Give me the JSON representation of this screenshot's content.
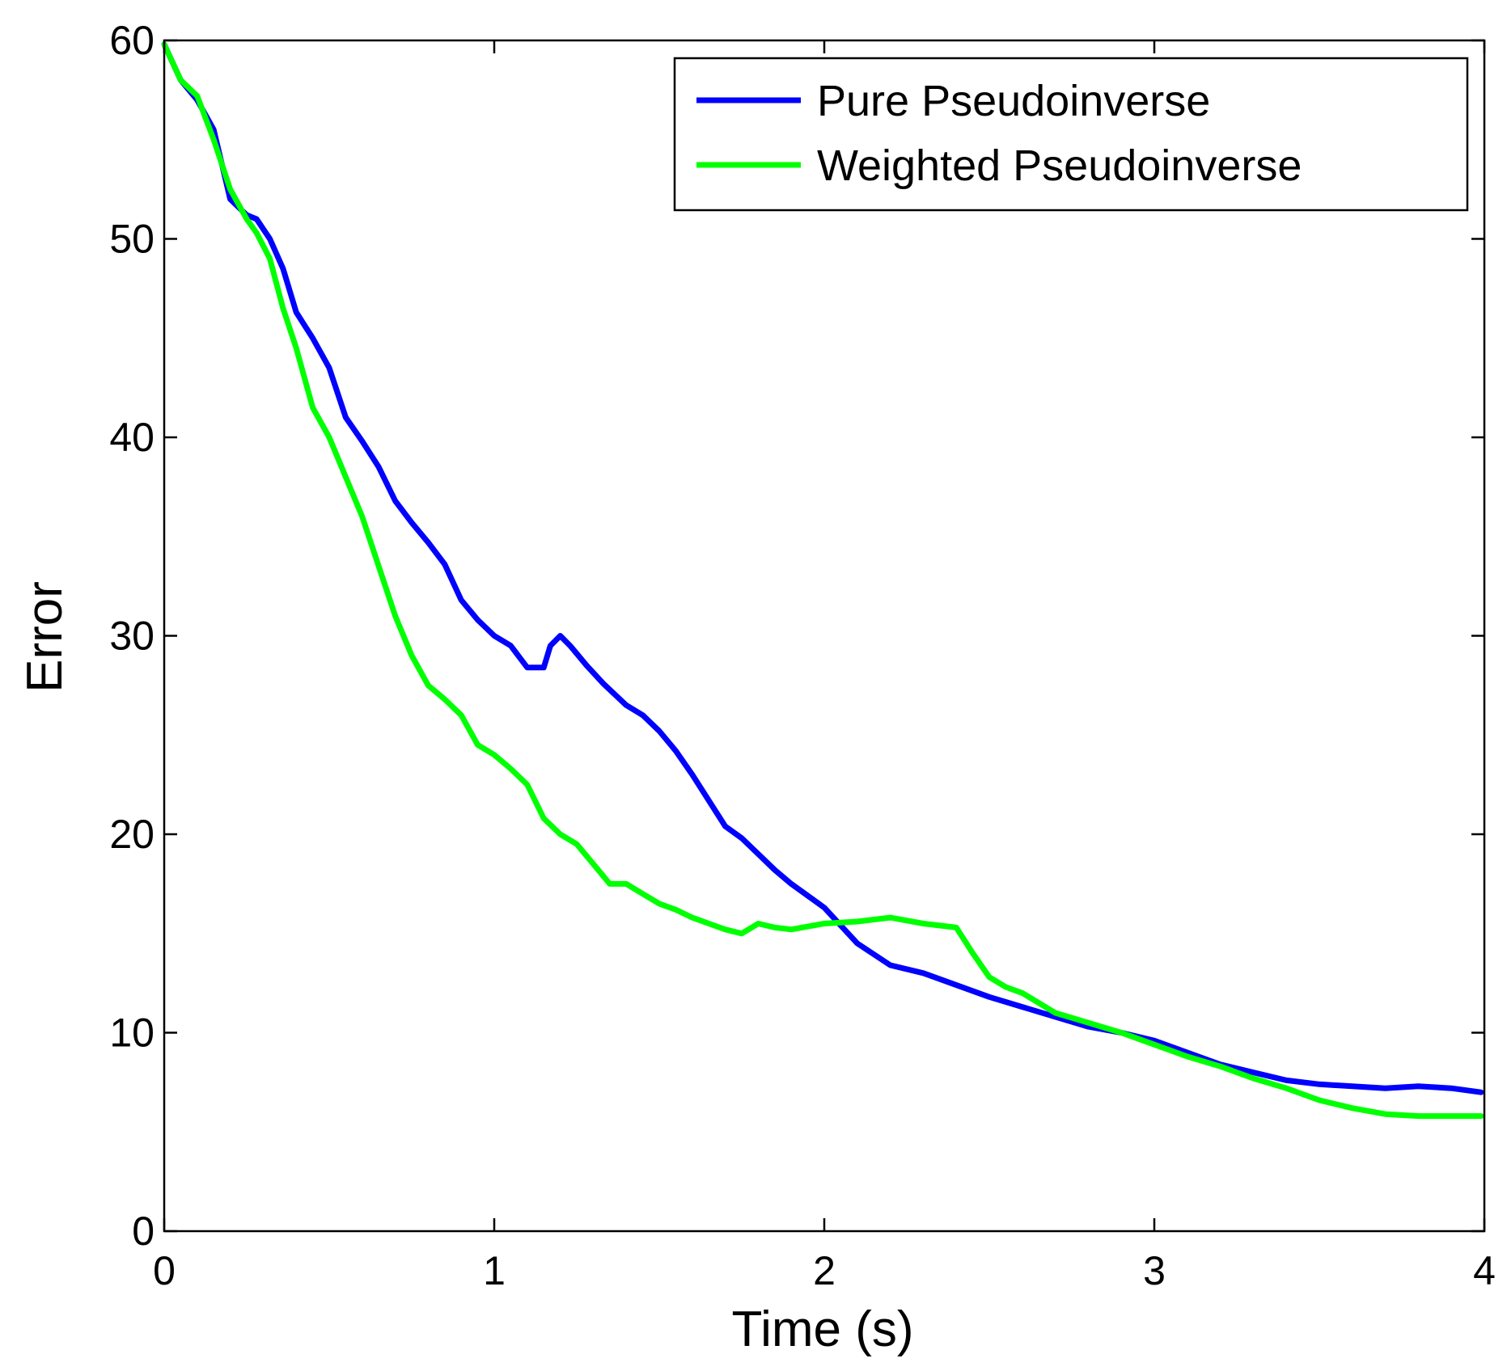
{
  "chart_data": {
    "type": "line",
    "title": "",
    "xlabel": "Time (s)",
    "ylabel": "Error",
    "xlim": [
      0,
      4
    ],
    "ylim": [
      0,
      60
    ],
    "xticks": [
      "0",
      "1",
      "2",
      "3",
      "4"
    ],
    "yticks": [
      "0",
      "10",
      "20",
      "30",
      "40",
      "50",
      "60"
    ],
    "grid": false,
    "legend_position": "top-right",
    "series": [
      {
        "name": "Pure Pseudoinverse",
        "color": "#0000ff",
        "x": [
          0,
          0.05,
          0.1,
          0.15,
          0.2,
          0.25,
          0.28,
          0.32,
          0.36,
          0.4,
          0.45,
          0.5,
          0.55,
          0.6,
          0.65,
          0.7,
          0.75,
          0.8,
          0.85,
          0.9,
          0.95,
          1.0,
          1.05,
          1.1,
          1.15,
          1.17,
          1.2,
          1.23,
          1.28,
          1.33,
          1.4,
          1.45,
          1.5,
          1.55,
          1.6,
          1.7,
          1.75,
          1.8,
          1.85,
          1.9,
          2.0,
          2.1,
          2.2,
          2.3,
          2.4,
          2.5,
          2.6,
          2.7,
          2.8,
          2.9,
          3.0,
          3.1,
          3.2,
          3.3,
          3.4,
          3.5,
          3.6,
          3.7,
          3.8,
          3.9,
          3.99
        ],
        "y": [
          59.8,
          58.0,
          57.0,
          55.5,
          52.0,
          51.2,
          51.0,
          50.0,
          48.5,
          46.3,
          45.0,
          43.5,
          41.0,
          39.8,
          38.5,
          36.8,
          35.7,
          34.7,
          33.6,
          31.8,
          30.8,
          30.0,
          29.5,
          28.4,
          28.4,
          29.5,
          30.0,
          29.5,
          28.5,
          27.6,
          26.5,
          26.0,
          25.2,
          24.2,
          23.0,
          20.4,
          19.8,
          19.0,
          18.2,
          17.5,
          16.3,
          14.5,
          13.4,
          13.0,
          12.4,
          11.8,
          11.3,
          10.8,
          10.3,
          10.0,
          9.6,
          9.0,
          8.4,
          8.0,
          7.6,
          7.4,
          7.3,
          7.2,
          7.3,
          7.2,
          7.0
        ]
      },
      {
        "name": "Weighted Pseudoinverse",
        "color": "#00ff00",
        "x": [
          0,
          0.05,
          0.1,
          0.15,
          0.2,
          0.25,
          0.28,
          0.32,
          0.36,
          0.4,
          0.45,
          0.5,
          0.55,
          0.6,
          0.65,
          0.7,
          0.75,
          0.8,
          0.85,
          0.9,
          0.95,
          1.0,
          1.05,
          1.1,
          1.15,
          1.2,
          1.25,
          1.3,
          1.35,
          1.4,
          1.45,
          1.5,
          1.55,
          1.6,
          1.7,
          1.75,
          1.8,
          1.85,
          1.9,
          2.0,
          2.1,
          2.2,
          2.3,
          2.4,
          2.45,
          2.5,
          2.55,
          2.6,
          2.7,
          2.8,
          2.9,
          3.0,
          3.1,
          3.2,
          3.3,
          3.4,
          3.5,
          3.6,
          3.7,
          3.8,
          3.9,
          3.99
        ],
        "y": [
          59.8,
          58.0,
          57.2,
          55.0,
          52.5,
          51.0,
          50.3,
          49.0,
          46.5,
          44.5,
          41.5,
          40.0,
          38.0,
          36.0,
          33.5,
          31.0,
          29.0,
          27.5,
          26.8,
          26.0,
          24.5,
          24.0,
          23.3,
          22.5,
          20.8,
          20.0,
          19.5,
          18.5,
          17.5,
          17.5,
          17.0,
          16.5,
          16.2,
          15.8,
          15.2,
          15.0,
          15.5,
          15.3,
          15.2,
          15.5,
          15.6,
          15.8,
          15.5,
          15.3,
          14.0,
          12.8,
          12.3,
          12.0,
          11.0,
          10.5,
          10.0,
          9.4,
          8.8,
          8.3,
          7.7,
          7.2,
          6.6,
          6.2,
          5.9,
          5.8,
          5.8,
          5.8
        ]
      }
    ]
  }
}
